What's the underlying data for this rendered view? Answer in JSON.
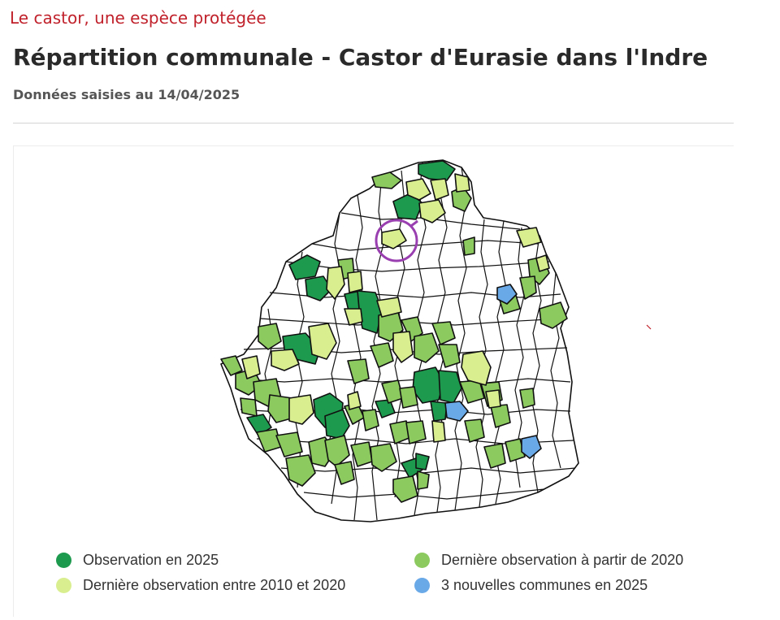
{
  "header": {
    "kicker": "Le castor, une espèce protégée",
    "title": "Répartition communale - Castor d'Eurasie dans l'Indre",
    "subtitle": "Données saisies au 14/04/2025"
  },
  "colors": {
    "dark_green": "#1e9a4e",
    "mid_green": "#8cc95f",
    "light_green": "#d9ef8f",
    "blue": "#6aa9e8",
    "white": "#ffffff",
    "border": "#111111",
    "highlight_circle": "#9a3fb0"
  },
  "legend": [
    {
      "label": "Observation en 2025",
      "color": "#1e9a4e"
    },
    {
      "label": "Dernière observation à partir de 2020",
      "color": "#8cc95f"
    },
    {
      "label": "Dernière observation entre 2010 et 2020",
      "color": "#d9ef8f"
    },
    {
      "label": "3 nouvelles communes en 2025",
      "color": "#6aa9e8"
    }
  ]
}
